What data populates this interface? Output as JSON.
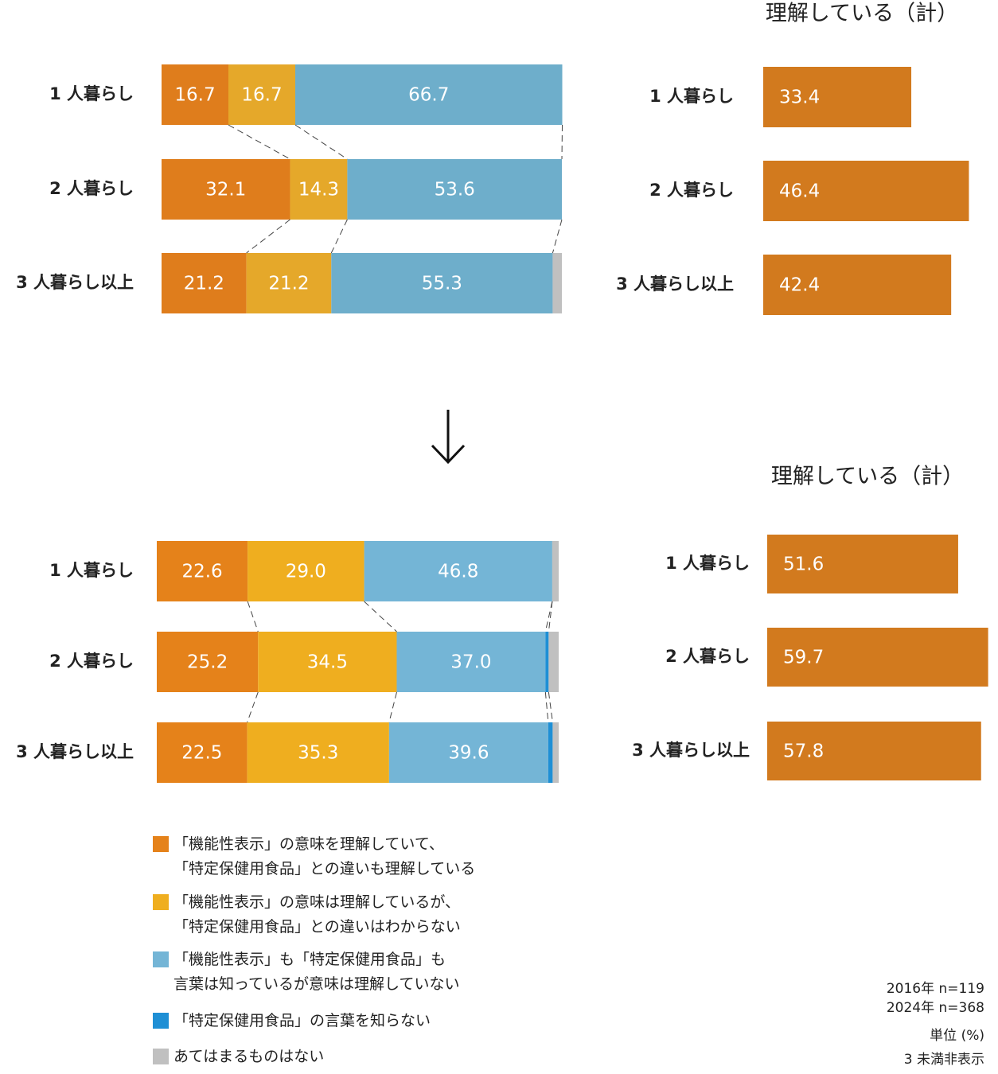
{
  "chart_data": [
    {
      "type": "bar",
      "orientation": "horizontal",
      "stacked": true,
      "categories": [
        "1 人暮らし",
        "2 人暮らし",
        "3 人暮らし以上"
      ],
      "series": [
        {
          "color": "#df7d1c",
          "values": [
            16.7,
            32.1,
            21.2
          ]
        },
        {
          "color": "#e5a82a",
          "values": [
            16.7,
            14.3,
            21.2
          ]
        },
        {
          "color": "#6eaecb",
          "values": [
            66.7,
            53.6,
            55.3
          ]
        },
        {
          "color": "#c0c0c0",
          "values": [
            0,
            0,
            2.3
          ],
          "hide_labels": true
        }
      ]
    },
    {
      "type": "bar",
      "orientation": "horizontal",
      "title": "理解している（計）",
      "color": "#d27a1e",
      "categories": [
        "1 人暮らし",
        "2 人暮らし",
        "3 人暮らし以上"
      ],
      "values": [
        33.4,
        46.4,
        42.4
      ]
    },
    {
      "type": "bar",
      "orientation": "horizontal",
      "stacked": true,
      "categories": [
        "1 人暮らし",
        "2 人暮らし",
        "3 人暮らし以上"
      ],
      "series": [
        {
          "name": "「機能性表示」の意味を理解していて、\n「特定保健用食品」との違いも理解している",
          "color": "#e5821a",
          "values": [
            22.6,
            25.2,
            22.5
          ]
        },
        {
          "name": "「機能性表示」の意味は理解しているが、\n「特定保健用食品」との違いはわからない",
          "color": "#efae1f",
          "values": [
            29.0,
            34.5,
            35.3
          ],
          "value_labels": [
            "29.0",
            "34.5",
            "35.3"
          ]
        },
        {
          "name": "「機能性表示」も「特定保健用食品」も\n言葉は知っているが意味は理解していない",
          "color": "#74b5d6",
          "values": [
            46.8,
            37.0,
            39.6
          ],
          "value_labels": [
            "46.8",
            "37.0",
            "39.6"
          ]
        },
        {
          "name": "「特定保健用食品」の言葉を知らない",
          "color": "#1e8fd5",
          "values": [
            0,
            0.8,
            1.1
          ],
          "hide_labels": true
        },
        {
          "name": "あてはまるものはない",
          "color": "#c0c0c0",
          "values": [
            1.6,
            2.5,
            1.5
          ],
          "hide_labels": true
        }
      ]
    },
    {
      "type": "bar",
      "orientation": "horizontal",
      "title": "理解している（計）",
      "color": "#d27a1e",
      "categories": [
        "1 人暮らし",
        "2 人暮らし",
        "3 人暮らし以上"
      ],
      "values": [
        51.6,
        59.7,
        57.8
      ]
    }
  ],
  "notes": [
    "2016年 n=119",
    "2024年 n=368",
    "単位 (%)",
    "3 未満非表示"
  ]
}
